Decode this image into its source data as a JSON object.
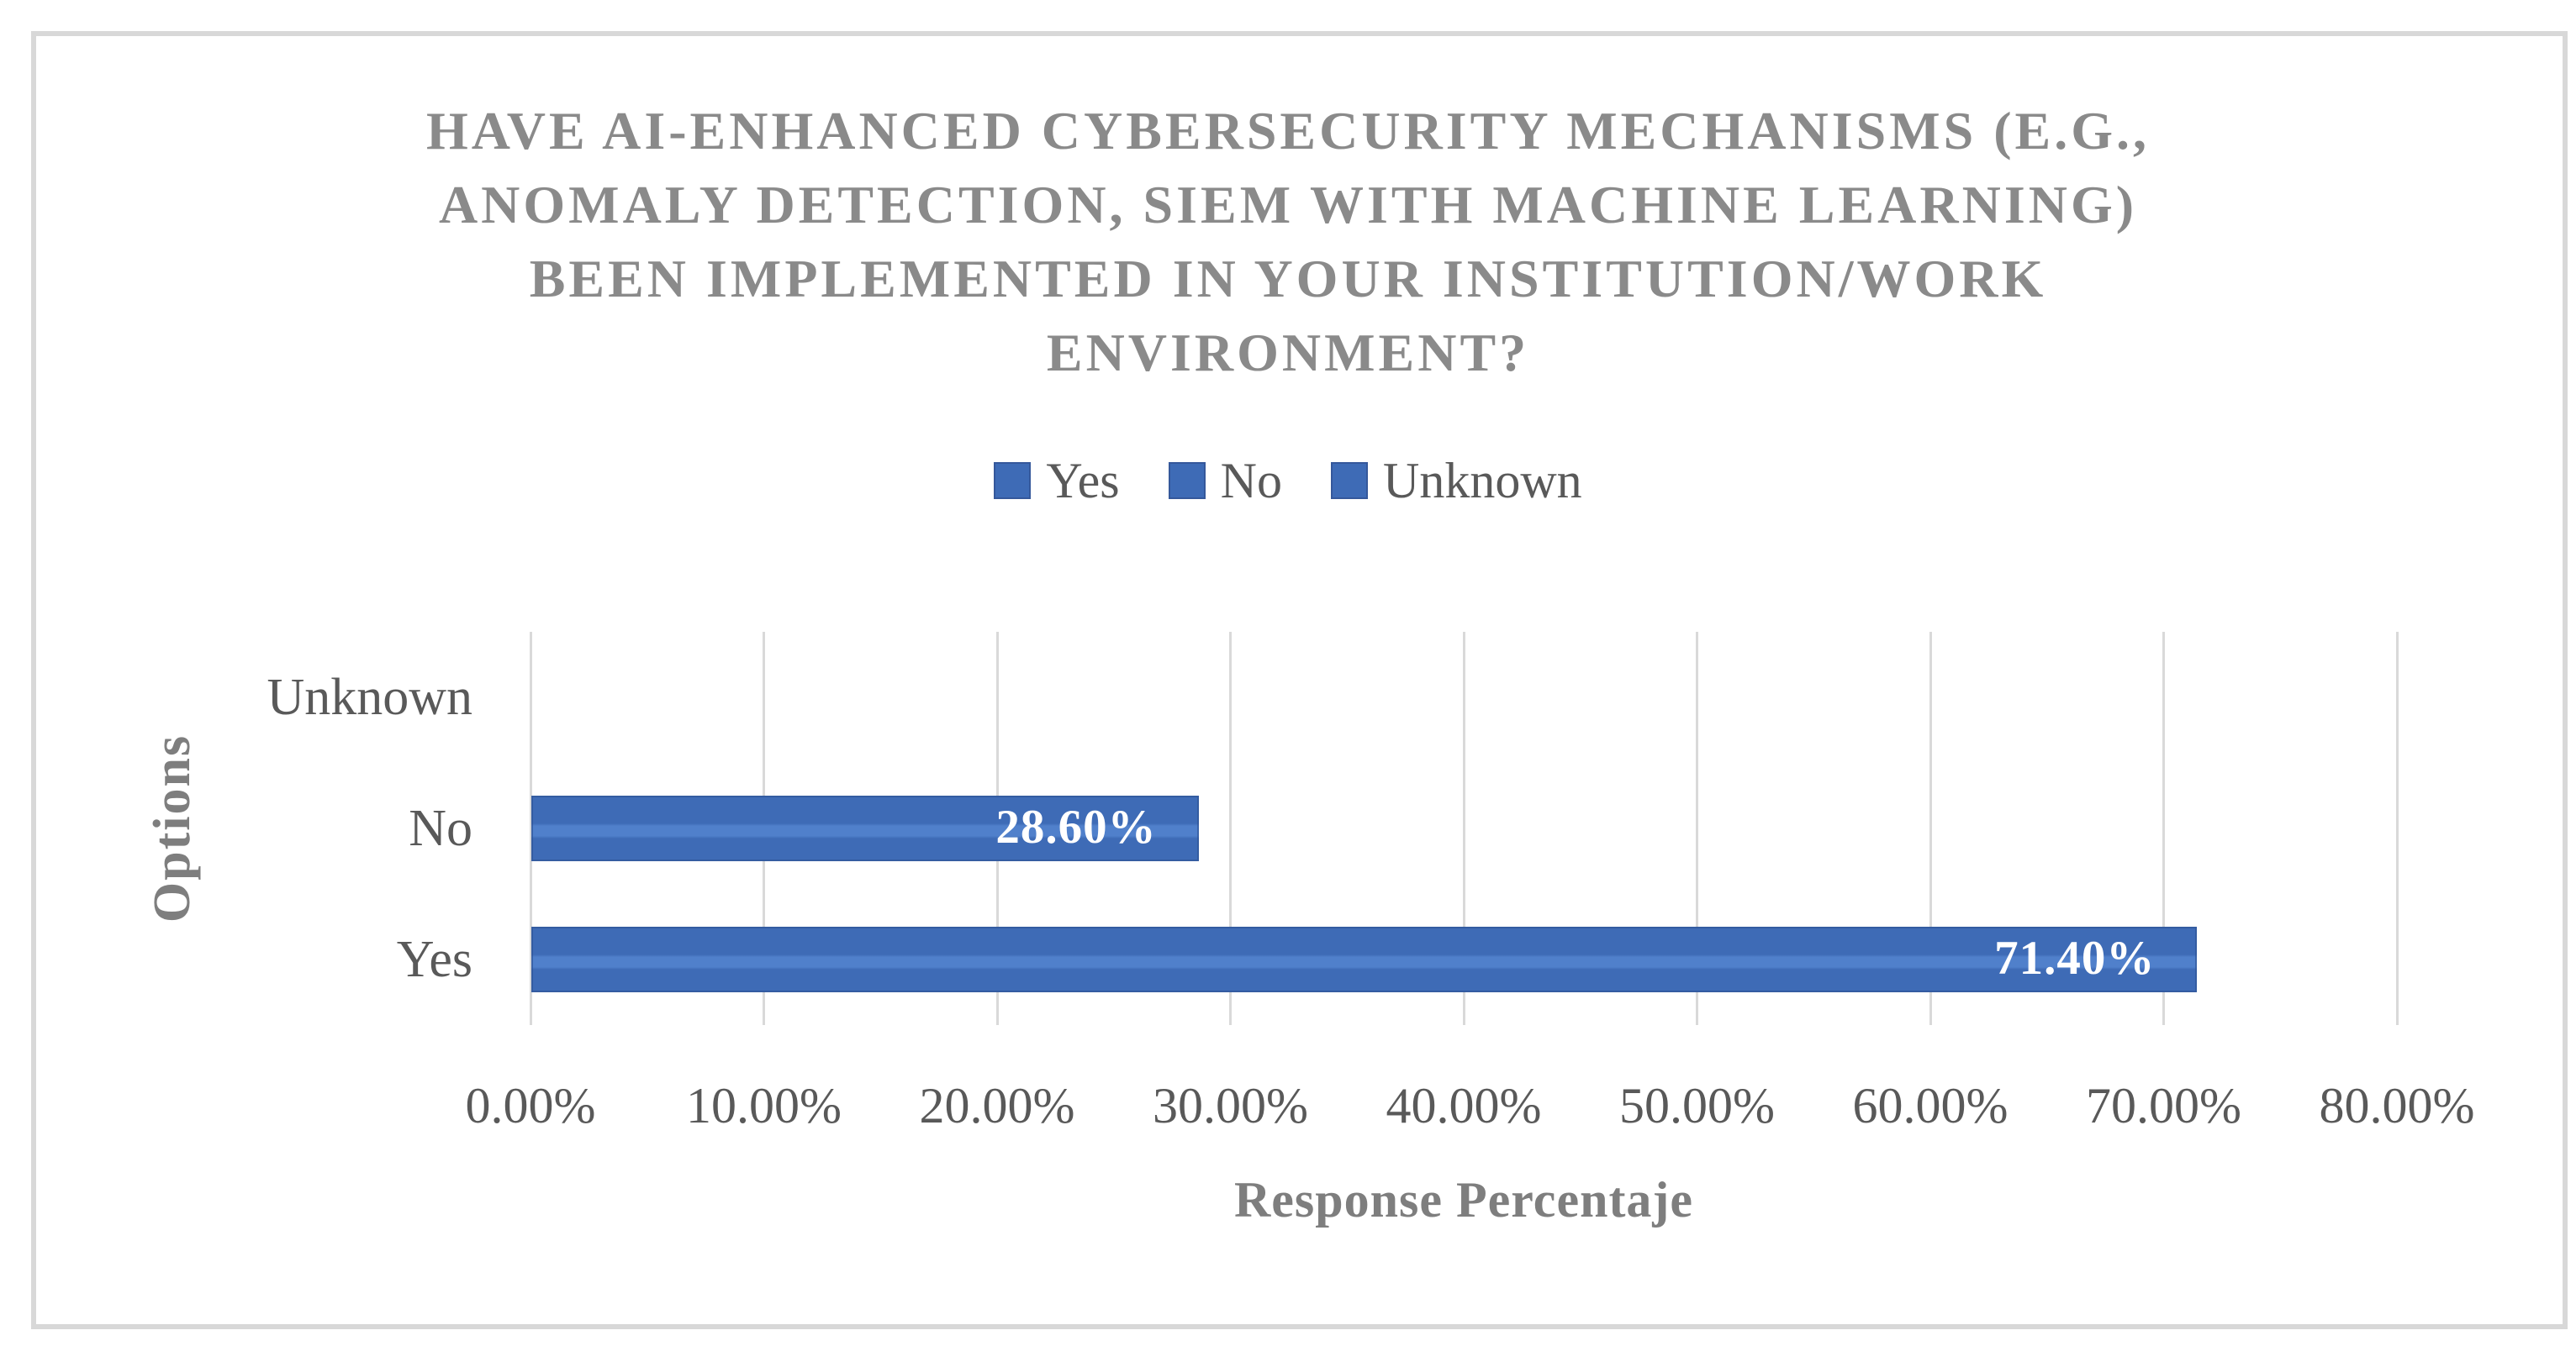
{
  "chart_data": {
    "type": "bar",
    "orientation": "horizontal",
    "title": "HAVE AI-ENHANCED CYBERSECURITY MECHANISMS (E.G., ANOMALY DETECTION, SIEM WITH MACHINE LEARNING) BEEN IMPLEMENTED IN YOUR INSTITUTION/WORK ENVIRONMENT?",
    "title_lines": [
      "HAVE AI-ENHANCED CYBERSECURITY MECHANISMS (E.G.,",
      "ANOMALY DETECTION, SIEM WITH MACHINE LEARNING)",
      "BEEN IMPLEMENTED IN YOUR INSTITUTION/WORK",
      "ENVIRONMENT?"
    ],
    "legend": [
      "Yes",
      "No",
      "Unknown"
    ],
    "legend_position": "top",
    "xlabel": "Response Percentaje",
    "ylabel": "Options",
    "xlim": [
      0,
      80
    ],
    "x_ticks": [
      "0.00%",
      "10.00%",
      "20.00%",
      "30.00%",
      "40.00%",
      "50.00%",
      "60.00%",
      "70.00%",
      "80.00%"
    ],
    "grid": "vertical",
    "bars": [
      {
        "label": "Unknown",
        "value": 0,
        "display": ""
      },
      {
        "label": "No",
        "value": 28.6,
        "display": "28.60%"
      },
      {
        "label": "Yes",
        "value": 71.4,
        "display": "71.40%"
      }
    ]
  },
  "colors": {
    "bar_fill": "#3E6BB6",
    "bar_stripe": "#5080CB",
    "bar_edge": "#35589B",
    "grid": "#D9D9D9",
    "frame": "#D8D8D8",
    "title": "#8A8A8A",
    "axis_title": "#7E7E7E",
    "text_dark": "#595959",
    "value_label": "#FFFFFF"
  }
}
